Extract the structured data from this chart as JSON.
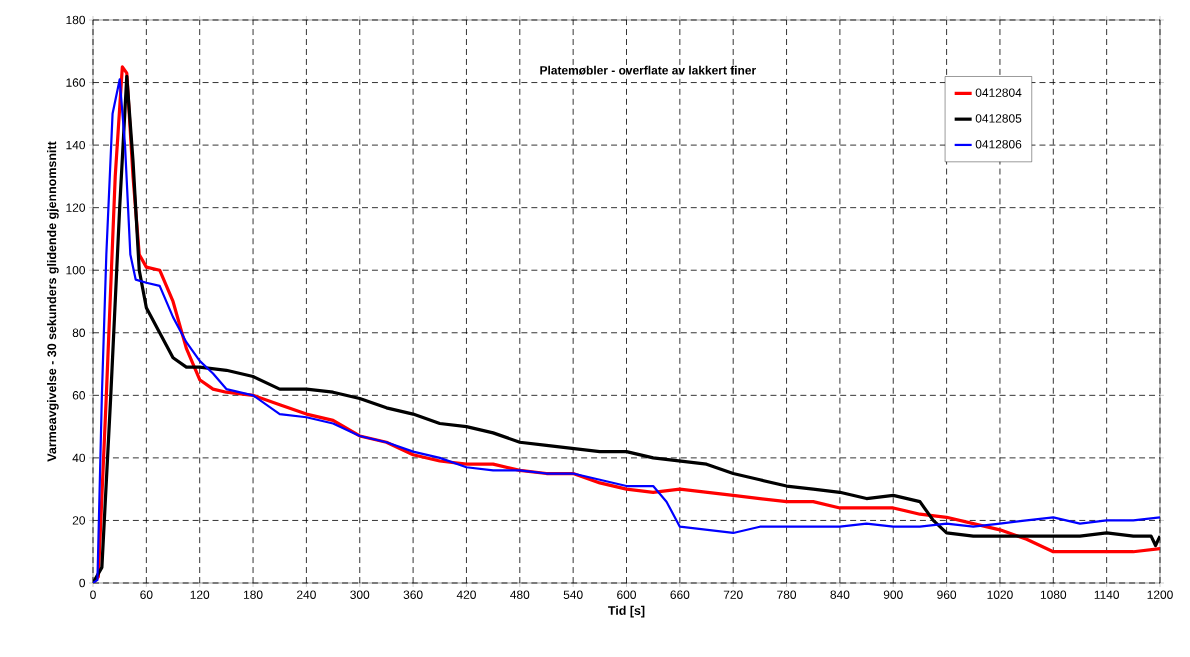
{
  "chart_data": {
    "type": "line",
    "title": "Platemøbler - overflate av lakkert finer",
    "xlabel": "Tid [s]",
    "ylabel": "Varmeavgivelse - 30 sekunders glidende gjennomsnitt",
    "xlim": [
      0,
      1200
    ],
    "ylim": [
      0,
      180
    ],
    "xticks": [
      0,
      60,
      120,
      180,
      240,
      300,
      360,
      420,
      480,
      540,
      600,
      660,
      720,
      780,
      840,
      900,
      960,
      1020,
      1080,
      1140,
      1200
    ],
    "yticks": [
      0,
      20,
      40,
      60,
      80,
      100,
      120,
      140,
      160,
      180
    ],
    "grid": true,
    "legend": "top right",
    "marker": "none",
    "line_style": "solid",
    "series": [
      {
        "name": "0412804",
        "color": "#ff0000",
        "x": [
          0,
          6,
          15,
          25,
          33,
          38,
          45,
          52,
          60,
          75,
          90,
          105,
          120,
          135,
          150,
          180,
          210,
          240,
          270,
          300,
          330,
          360,
          390,
          420,
          450,
          480,
          510,
          540,
          570,
          600,
          630,
          660,
          690,
          720,
          750,
          780,
          810,
          840,
          870,
          900,
          930,
          960,
          990,
          1020,
          1050,
          1080,
          1110,
          1140,
          1170,
          1200
        ],
        "values": [
          0,
          2,
          60,
          130,
          165,
          163,
          130,
          105,
          101,
          100,
          90,
          75,
          65,
          62,
          61,
          60,
          57,
          54,
          52,
          47,
          45,
          41,
          39,
          38,
          38,
          36,
          35,
          35,
          32,
          30,
          29,
          30,
          29,
          28,
          27,
          26,
          26,
          24,
          24,
          24,
          22,
          21,
          19,
          17,
          14,
          10,
          10,
          10,
          10,
          11
        ]
      },
      {
        "name": "0412805",
        "color": "#000000",
        "x": [
          0,
          10,
          20,
          30,
          38,
          45,
          52,
          60,
          75,
          90,
          105,
          120,
          150,
          180,
          210,
          240,
          270,
          300,
          330,
          360,
          390,
          420,
          450,
          480,
          510,
          540,
          570,
          600,
          630,
          660,
          690,
          720,
          750,
          780,
          810,
          840,
          870,
          900,
          930,
          945,
          960,
          990,
          1020,
          1050,
          1080,
          1110,
          1140,
          1170,
          1190,
          1195,
          1200
        ],
        "values": [
          0,
          5,
          60,
          120,
          162,
          135,
          100,
          88,
          80,
          72,
          69,
          69,
          68,
          66,
          62,
          62,
          61,
          59,
          56,
          54,
          51,
          50,
          48,
          45,
          44,
          43,
          42,
          42,
          40,
          39,
          38,
          35,
          33,
          31,
          30,
          29,
          27,
          28,
          26,
          20,
          16,
          15,
          15,
          15,
          15,
          15,
          16,
          15,
          15,
          12,
          15
        ]
      },
      {
        "name": "0412806",
        "color": "#0000ff",
        "x": [
          0,
          5,
          10,
          15,
          22,
          30,
          36,
          42,
          48,
          60,
          75,
          90,
          105,
          120,
          135,
          150,
          180,
          210,
          240,
          270,
          300,
          330,
          360,
          390,
          420,
          450,
          480,
          510,
          540,
          570,
          600,
          630,
          645,
          660,
          690,
          720,
          750,
          780,
          810,
          840,
          870,
          900,
          930,
          960,
          990,
          1020,
          1050,
          1080,
          1110,
          1140,
          1170,
          1200
        ],
        "values": [
          0,
          1,
          60,
          105,
          150,
          161,
          140,
          105,
          97,
          96,
          95,
          85,
          77,
          71,
          67,
          62,
          60,
          54,
          53,
          51,
          47,
          45,
          42,
          40,
          37,
          36,
          36,
          35,
          35,
          33,
          31,
          31,
          26,
          18,
          17,
          16,
          18,
          18,
          18,
          18,
          19,
          18,
          18,
          19,
          18,
          19,
          20,
          21,
          19,
          20,
          20,
          21
        ]
      }
    ]
  }
}
